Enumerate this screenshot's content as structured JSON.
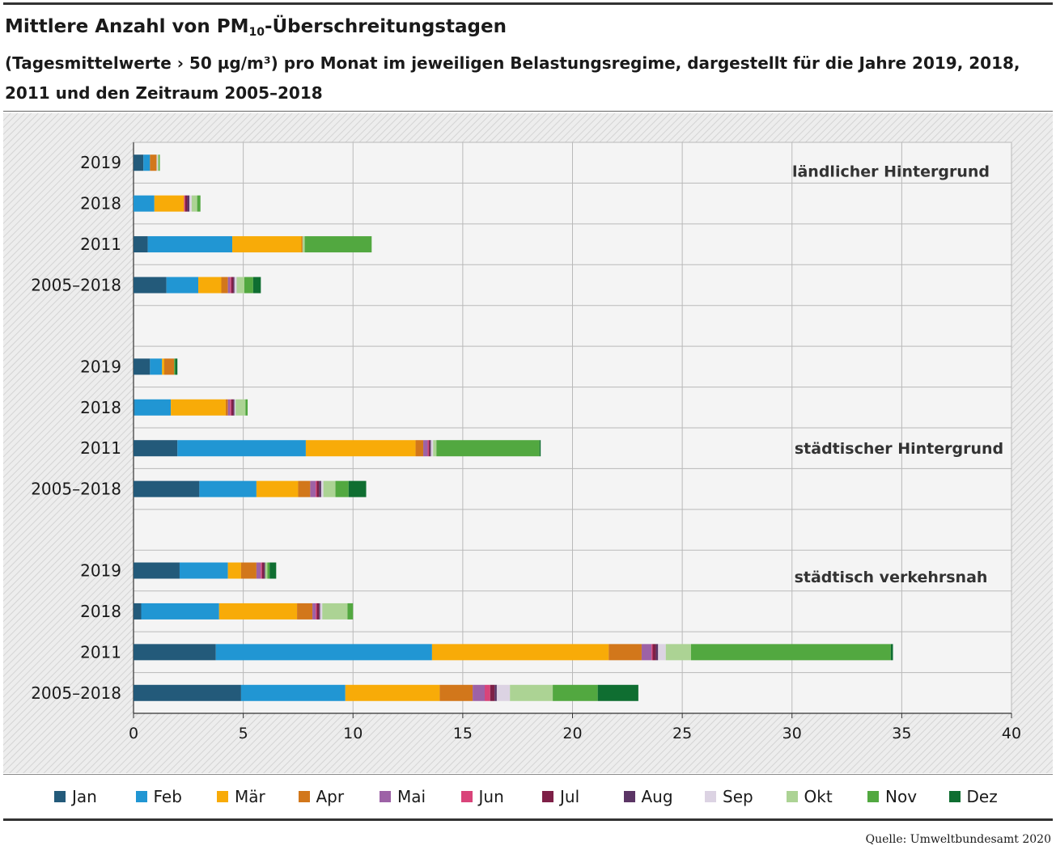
{
  "title": {
    "main": "Mittlere Anzahl von PM",
    "sub": "10",
    "rest": "-Überschreitungstagen"
  },
  "subtitle": "(Tagesmittelwerte › 50 µg/m³) pro Monat im jeweiligen Belastungsregime, dargestellt für die Jahre 2019, 2018, 2011 und den Zeitraum 2005–2018",
  "source": "Quelle: Umweltbundesamt 2020",
  "chart_data": {
    "type": "bar",
    "orientation": "horizontal",
    "stacked": true,
    "xlim": [
      0,
      40
    ],
    "xticks": [
      0,
      5,
      10,
      15,
      20,
      25,
      30,
      35,
      40
    ],
    "grid": true,
    "legend_position": "bottom",
    "months": [
      "Jan",
      "Feb",
      "Mär",
      "Apr",
      "Mai",
      "Jun",
      "Jul",
      "Aug",
      "Sep",
      "Okt",
      "Nov",
      "Dez"
    ],
    "colors": [
      "#235a7a",
      "#2196d3",
      "#f8ab08",
      "#d2771b",
      "#9d62a6",
      "#d9447a",
      "#7e2047",
      "#5b3565",
      "#dcd3e3",
      "#acd394",
      "#52a840",
      "#0f6e31"
    ],
    "groups": [
      {
        "label": "ländlicher Hintergrund",
        "rows": [
          {
            "label": "2019",
            "values": [
              0.45,
              0.3,
              0.0,
              0.3,
              0.0,
              0.0,
              0.0,
              0.0,
              0.05,
              0.05,
              0.05,
              0.0
            ]
          },
          {
            "label": "2018",
            "values": [
              0.0,
              0.95,
              1.35,
              0.0,
              0.0,
              0.05,
              0.1,
              0.1,
              0.1,
              0.25,
              0.15,
              0.0
            ]
          },
          {
            "label": "2011",
            "values": [
              0.65,
              3.85,
              3.15,
              0.05,
              0.0,
              0.0,
              0.0,
              0.0,
              0.0,
              0.1,
              3.05,
              0.0
            ]
          },
          {
            "label": "2005–2018",
            "values": [
              1.5,
              1.45,
              1.05,
              0.3,
              0.1,
              0.05,
              0.1,
              0.05,
              0.1,
              0.35,
              0.4,
              0.35
            ]
          }
        ]
      },
      {
        "label": "städtischer Hintergrund",
        "rows": [
          {
            "label": "2019",
            "values": [
              0.75,
              0.55,
              0.1,
              0.45,
              0.0,
              0.0,
              0.0,
              0.0,
              0.0,
              0.0,
              0.05,
              0.1
            ]
          },
          {
            "label": "2018",
            "values": [
              0.05,
              1.65,
              2.5,
              0.1,
              0.1,
              0.05,
              0.1,
              0.05,
              0.05,
              0.45,
              0.1,
              0.0
            ]
          },
          {
            "label": "2011",
            "values": [
              2.0,
              5.85,
              5.0,
              0.35,
              0.2,
              0.05,
              0.05,
              0.05,
              0.1,
              0.15,
              4.7,
              0.05
            ]
          },
          {
            "label": "2005–2018",
            "values": [
              3.0,
              2.6,
              1.9,
              0.55,
              0.25,
              0.05,
              0.1,
              0.1,
              0.1,
              0.55,
              0.6,
              0.8
            ]
          }
        ]
      },
      {
        "label": "städtisch verkehrsnah",
        "rows": [
          {
            "label": "2019",
            "values": [
              2.1,
              2.2,
              0.6,
              0.7,
              0.2,
              0.05,
              0.1,
              0.05,
              0.0,
              0.1,
              0.1,
              0.3
            ]
          },
          {
            "label": "2018",
            "values": [
              0.35,
              3.55,
              3.55,
              0.7,
              0.15,
              0.05,
              0.1,
              0.05,
              0.1,
              1.15,
              0.25,
              0.0
            ]
          },
          {
            "label": "2011",
            "values": [
              3.75,
              9.85,
              8.05,
              1.5,
              0.45,
              0.05,
              0.15,
              0.1,
              0.35,
              1.15,
              9.1,
              0.1
            ]
          },
          {
            "label": "2005–2018",
            "values": [
              4.9,
              4.75,
              4.3,
              1.5,
              0.55,
              0.25,
              0.2,
              0.1,
              0.6,
              1.95,
              2.05,
              1.85
            ]
          }
        ]
      }
    ]
  }
}
